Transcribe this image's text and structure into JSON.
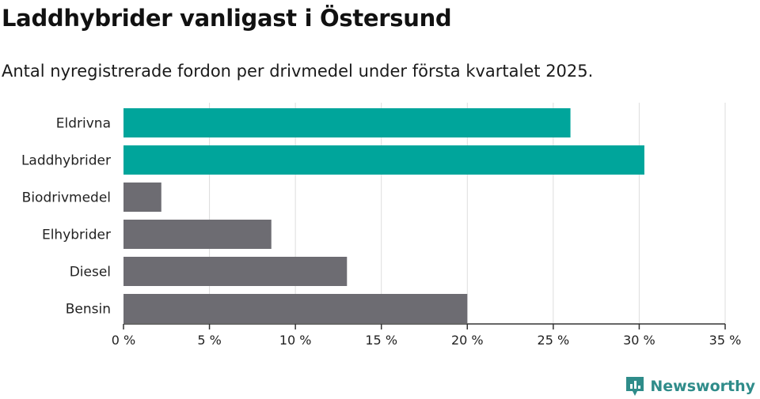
{
  "title": "Laddhybrider vanligast i Östersund",
  "subtitle": "Antal nyregistrerade fordon per drivmedel under första kvartalet 2025.",
  "brand": {
    "name": "Newsworthy",
    "color": "#2f8c8a"
  },
  "chart_data": {
    "type": "bar",
    "orientation": "horizontal",
    "categories": [
      "Eldrivna",
      "Laddhybrider",
      "Biodrivmedel",
      "Elhybrider",
      "Diesel",
      "Bensin"
    ],
    "values": [
      26.0,
      30.3,
      2.2,
      8.6,
      13.0,
      20.0
    ],
    "colors": [
      "#00a59b",
      "#00a59b",
      "#6d6c72",
      "#6d6c72",
      "#6d6c72",
      "#6d6c72"
    ],
    "xlim": [
      0,
      35
    ],
    "xticks": [
      0,
      5,
      10,
      15,
      20,
      25,
      30,
      35
    ],
    "tick_suffix": " %",
    "grid": true
  }
}
